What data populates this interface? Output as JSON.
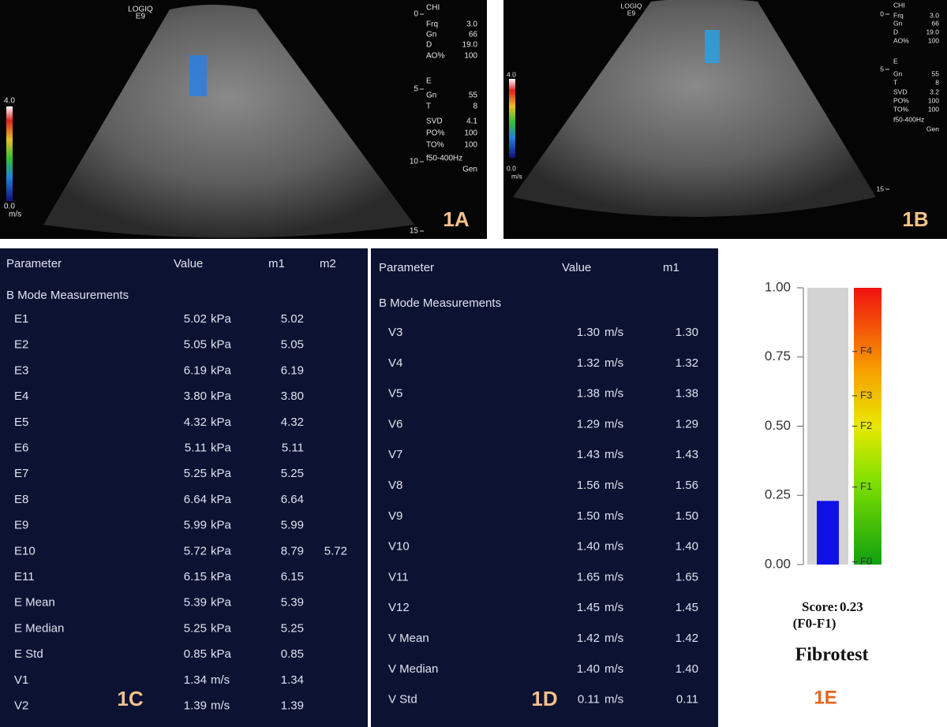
{
  "panels": [
    {
      "label": "1A",
      "logo": "LOGIQ",
      "model": "E9",
      "header": "CHI",
      "settings_top": [
        [
          "Frq",
          "3.0"
        ],
        [
          "Gn",
          "66"
        ],
        [
          "D",
          "19.0"
        ],
        [
          "AO%",
          "100"
        ]
      ],
      "mode": "E",
      "settings_bottom": [
        [
          "Gn",
          "55"
        ],
        [
          "T",
          "8"
        ],
        [
          "SVD",
          "4.1"
        ],
        [
          "PO%",
          "100"
        ],
        [
          "TO%",
          "100"
        ]
      ],
      "filter": "f50-400Hz",
      "preset": "Gen",
      "depths": [
        "0",
        "5",
        "10",
        "15"
      ],
      "scale_max": "4.0",
      "scale_min": "0.0",
      "scale_unit": "m/s"
    },
    {
      "label": "1B",
      "logo": "LOGIQ",
      "model": "E9",
      "header": "CHI",
      "settings_top": [
        [
          "Frq",
          "3.0"
        ],
        [
          "Gn",
          "66"
        ],
        [
          "D",
          "19.0"
        ],
        [
          "AO%",
          "100"
        ]
      ],
      "mode": "E",
      "settings_bottom": [
        [
          "Gn",
          "55"
        ],
        [
          "T",
          "8"
        ],
        [
          "SVD",
          "3.2"
        ],
        [
          "PO%",
          "100"
        ],
        [
          "TO%",
          "100"
        ]
      ],
      "filter": "f50-400Hz",
      "preset": "Gen",
      "depths": [
        "0",
        "5",
        "15"
      ],
      "scale_max": "4.0",
      "scale_min": "0.0",
      "scale_unit": "m/s"
    }
  ],
  "tables": [
    {
      "label": "1C",
      "headers": [
        "Parameter",
        "Value",
        "m1",
        "m2"
      ],
      "section": "B Mode Measurements",
      "rows": [
        [
          "E1",
          "5.02",
          "kPa",
          "5.02"
        ],
        [
          "E2",
          "5.05",
          "kPa",
          "5.05"
        ],
        [
          "E3",
          "6.19",
          "kPa",
          "6.19"
        ],
        [
          "E4",
          "3.80",
          "kPa",
          "3.80"
        ],
        [
          "E5",
          "4.32",
          "kPa",
          "4.32"
        ],
        [
          "E6",
          "5.11",
          "kPa",
          "5.11"
        ],
        [
          "E7",
          "5.25",
          "kPa",
          "5.25"
        ],
        [
          "E8",
          "6.64",
          "kPa",
          "6.64"
        ],
        [
          "E9",
          "5.99",
          "kPa",
          "5.99"
        ],
        [
          "E10",
          "5.72",
          "kPa",
          "8.79",
          "5.72"
        ],
        [
          "E11",
          "6.15",
          "kPa",
          "6.15"
        ],
        [
          "E Mean",
          "5.39",
          "kPa",
          "5.39"
        ],
        [
          "E Median",
          "5.25",
          "kPa",
          "5.25"
        ],
        [
          "E Std",
          "0.85",
          "kPa",
          "0.85"
        ],
        [
          "V1",
          "1.34",
          "m/s",
          "1.34"
        ],
        [
          "V2",
          "1.39",
          "m/s",
          "1.39"
        ]
      ]
    },
    {
      "label": "1D",
      "headers": [
        "Parameter",
        "Value",
        "m1"
      ],
      "section": "B Mode Measurements",
      "rows": [
        [
          "V3",
          "1.30",
          "m/s",
          "1.30"
        ],
        [
          "V4",
          "1.32",
          "m/s",
          "1.32"
        ],
        [
          "V5",
          "1.38",
          "m/s",
          "1.38"
        ],
        [
          "V6",
          "1.29",
          "m/s",
          "1.29"
        ],
        [
          "V7",
          "1.43",
          "m/s",
          "1.43"
        ],
        [
          "V8",
          "1.56",
          "m/s",
          "1.56"
        ],
        [
          "V9",
          "1.50",
          "m/s",
          "1.50"
        ],
        [
          "V10",
          "1.40",
          "m/s",
          "1.40"
        ],
        [
          "V11",
          "1.65",
          "m/s",
          "1.65"
        ],
        [
          "V12",
          "1.45",
          "m/s",
          "1.45"
        ],
        [
          "V Mean",
          "1.42",
          "m/s",
          "1.42"
        ],
        [
          "V Median",
          "1.40",
          "m/s",
          "1.40"
        ],
        [
          "V Std",
          "0.11",
          "m/s",
          "0.11"
        ]
      ]
    }
  ],
  "chart_data": {
    "type": "bar",
    "title": "Fibrotest",
    "label": "1E",
    "score_label": "Score:",
    "values": [
      0.23
    ],
    "value_labels": [
      "0.23"
    ],
    "annotation": "(F0-F1)",
    "color": "#1010e8",
    "track_color": "#d3d3d3",
    "ylim": [
      0,
      1
    ],
    "yticks": [
      {
        "value": 0,
        "label": "0.00"
      },
      {
        "value": 0.25,
        "label": "0.25"
      },
      {
        "value": 0.5,
        "label": "0.50"
      },
      {
        "value": 0.75,
        "label": "0.75"
      },
      {
        "value": 1,
        "label": "1.00"
      }
    ],
    "stages": [
      {
        "label": "F0",
        "value": 0.01
      },
      {
        "label": "F1",
        "value": 0.28
      },
      {
        "label": "F2",
        "value": 0.5
      },
      {
        "label": "F3",
        "value": 0.61
      },
      {
        "label": "F4",
        "value": 0.77
      }
    ]
  }
}
